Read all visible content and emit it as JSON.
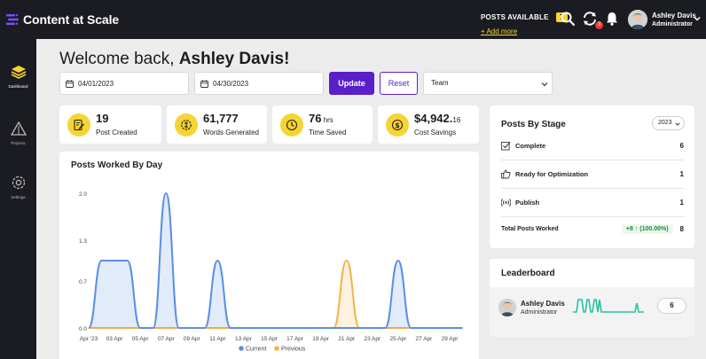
{
  "app": {
    "name": "Content at Scale"
  },
  "header": {
    "posts_available_label": "POSTS AVAILABLE",
    "posts_available_count": "7",
    "add_more": "+ Add more",
    "notification_badge": "3",
    "user_name": "Ashley Davis",
    "user_role": "Administrator"
  },
  "sidebar": {
    "items": [
      {
        "label": "Dashboard",
        "icon": "layers-icon",
        "active": true
      },
      {
        "label": "Projects",
        "icon": "triangle-icon",
        "active": false
      },
      {
        "label": "Settings",
        "icon": "gear-icon",
        "active": false
      }
    ]
  },
  "welcome": {
    "prefix": "Welcome back, ",
    "name": "Ashley Davis!"
  },
  "filters": {
    "start_date": "04/01/2023",
    "end_date": "04/30/2023",
    "update_label": "Update",
    "reset_label": "Reset",
    "team_value": "Team"
  },
  "stats": [
    {
      "value": "19",
      "suffix": "",
      "label": "Post Created",
      "icon": "document-edit-icon"
    },
    {
      "value": "61,777",
      "suffix": "",
      "label": "Words Generated",
      "icon": "words-icon"
    },
    {
      "value": "76",
      "suffix": " hrs",
      "label": "Time Saved",
      "icon": "clock-icon"
    },
    {
      "value": "$4,942.",
      "suffix": "16",
      "label": "Cost Savings",
      "icon": "dollar-icon"
    }
  ],
  "chart_data": {
    "type": "area",
    "title": "Posts Worked By Day",
    "x": [
      "Apr '23",
      "03 Apr",
      "05 Apr",
      "07 Apr",
      "09 Apr",
      "11 Apr",
      "13 Apr",
      "15 Apr",
      "17 Apr",
      "19 Apr",
      "21 Apr",
      "23 Apr",
      "25 Apr",
      "27 Apr",
      "29 Apr"
    ],
    "y_ticks": [
      "2.0",
      "1.3",
      "0.7",
      "0.0"
    ],
    "ylim": [
      0,
      2
    ],
    "series": [
      {
        "name": "Current",
        "color": "#5b8ee6",
        "points": [
          [
            1,
            0
          ],
          [
            2,
            1
          ],
          [
            3,
            1
          ],
          [
            4,
            1
          ],
          [
            5,
            0
          ],
          [
            6,
            0
          ],
          [
            7,
            2
          ],
          [
            8,
            0
          ],
          [
            9,
            0
          ],
          [
            10,
            0
          ],
          [
            11,
            1
          ],
          [
            12,
            0
          ],
          [
            13,
            0
          ],
          [
            14,
            0
          ],
          [
            15,
            0
          ],
          [
            16,
            0
          ],
          [
            17,
            0
          ],
          [
            18,
            0
          ],
          [
            19,
            0
          ],
          [
            20,
            0
          ],
          [
            21,
            0
          ],
          [
            22,
            0
          ],
          [
            23,
            0
          ],
          [
            24,
            0
          ],
          [
            25,
            1
          ],
          [
            26,
            0
          ],
          [
            27,
            0
          ],
          [
            28,
            0
          ],
          [
            29,
            0
          ],
          [
            30,
            0
          ]
        ]
      },
      {
        "name": "Previous",
        "color": "#f5b14c",
        "points": [
          [
            1,
            0
          ],
          [
            2,
            0
          ],
          [
            3,
            0
          ],
          [
            4,
            0
          ],
          [
            5,
            0
          ],
          [
            6,
            0
          ],
          [
            7,
            0
          ],
          [
            8,
            0
          ],
          [
            9,
            0
          ],
          [
            10,
            0
          ],
          [
            11,
            0
          ],
          [
            12,
            0
          ],
          [
            13,
            0
          ],
          [
            14,
            0
          ],
          [
            15,
            0
          ],
          [
            16,
            0
          ],
          [
            17,
            0
          ],
          [
            18,
            0
          ],
          [
            19,
            0
          ],
          [
            20,
            0
          ],
          [
            21,
            1
          ],
          [
            22,
            0
          ],
          [
            23,
            0
          ],
          [
            24,
            0
          ],
          [
            25,
            0
          ],
          [
            26,
            0
          ],
          [
            27,
            0
          ],
          [
            28,
            0
          ],
          [
            29,
            0
          ],
          [
            30,
            0
          ]
        ]
      }
    ],
    "legend": "bottom-center",
    "grid": false
  },
  "stages": {
    "title": "Posts By Stage",
    "year": "2023",
    "rows": [
      {
        "label": "Complete",
        "count": "6",
        "icon": "checkbox-icon"
      },
      {
        "label": "Ready for Optimization",
        "count": "1",
        "icon": "thumbs-up-icon"
      },
      {
        "label": "Publish",
        "count": "1",
        "icon": "broadcast-icon"
      }
    ],
    "total_label": "Total Posts Worked",
    "total_change": "+8 ↑ (100.00%)",
    "total_count": "8"
  },
  "leaderboard": {
    "title": "Leaderboard",
    "name": "Ashley Davis",
    "role": "Administrator",
    "count": "6",
    "sparkline_color": "#23c4a4"
  }
}
